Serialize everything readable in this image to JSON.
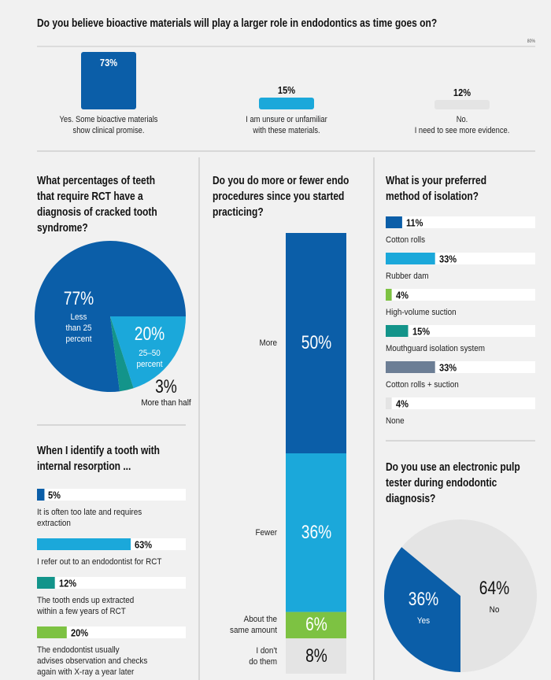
{
  "chart_data": [
    {
      "type": "bar",
      "title": "Do you believe bioactive materials will play a larger role in endodontics as time goes on?",
      "categories": [
        "Yes. Some bioactive materials\nshow clinical promise.",
        "I am unsure or unfamiliar\nwith these materials.",
        "No.\nI need to see more evidence."
      ],
      "values": [
        73,
        15,
        12
      ],
      "value_labels": [
        "73%",
        "15%",
        "12%"
      ],
      "colors": [
        "#0b5ea8",
        "#1ba8da",
        "#e4e4e4"
      ],
      "ylim": [
        0,
        80
      ],
      "yticks": [
        {
          "value": 80,
          "label": "80%"
        }
      ]
    },
    {
      "type": "pie",
      "title": "What percentages of teeth\nthat require RCT have a\ndiagnosis of cracked tooth\nsyndrome?",
      "categories": [
        "Less\nthan 25\npercent",
        "25–50\npercent",
        "More than half"
      ],
      "values": [
        77,
        20,
        3
      ],
      "value_labels": [
        "77%",
        "20%",
        "3%"
      ],
      "colors": [
        "#0b5ea8",
        "#1ba8da",
        "#13948a"
      ]
    },
    {
      "type": "stacked_bar",
      "title": "Do you do more or fewer endo\nprocedures since you started\npracticing?",
      "categories": [
        "More",
        "Fewer",
        "About the\nsame amount",
        "I don't\ndo them"
      ],
      "values": [
        50,
        36,
        6,
        8
      ],
      "value_labels": [
        "50%",
        "36%",
        "6%",
        "8%"
      ],
      "colors": [
        "#0b5ea8",
        "#1ba8da",
        "#7dc242",
        "#e4e4e4"
      ]
    },
    {
      "type": "hbar",
      "title": "What is your preferred\nmethod of isolation?",
      "categories": [
        "Cotton rolls",
        "Rubber dam",
        "High-volume suction",
        "Mouthguard isolation system",
        "Cotton rolls + suction",
        "None"
      ],
      "values": [
        11,
        33,
        4,
        15,
        33,
        4
      ],
      "value_labels": [
        "11%",
        "33%",
        "4%",
        "15%",
        "33%",
        "4%"
      ],
      "colors": [
        "#0b5ea8",
        "#1ba8da",
        "#7dc242",
        "#13948a",
        "#6c7e95",
        "#e4e4e4"
      ],
      "xlim": [
        0,
        100
      ]
    },
    {
      "type": "hbar",
      "title": "When I identify a tooth with\ninternal resorption ...",
      "categories": [
        "It is often too late and requires\nextraction",
        "I refer out to an endodontist for RCT",
        "The tooth ends up extracted\nwithin a few years of RCT",
        "The endodontist usually\nadvises observation and checks\nagain with X-ray a year later"
      ],
      "values": [
        5,
        63,
        12,
        20
      ],
      "value_labels": [
        "5%",
        "63%",
        "12%",
        "20%"
      ],
      "colors": [
        "#0b5ea8",
        "#1ba8da",
        "#13948a",
        "#7dc242"
      ],
      "xlim": [
        0,
        100
      ]
    },
    {
      "type": "pie",
      "title": "Do you use an electronic pulp\ntester during endodontic\ndiagnosis?",
      "categories": [
        "Yes",
        "No"
      ],
      "values": [
        36,
        64
      ],
      "value_labels": [
        "36%",
        "64%"
      ],
      "colors": [
        "#0b5ea8",
        "#e4e4e4"
      ]
    }
  ]
}
